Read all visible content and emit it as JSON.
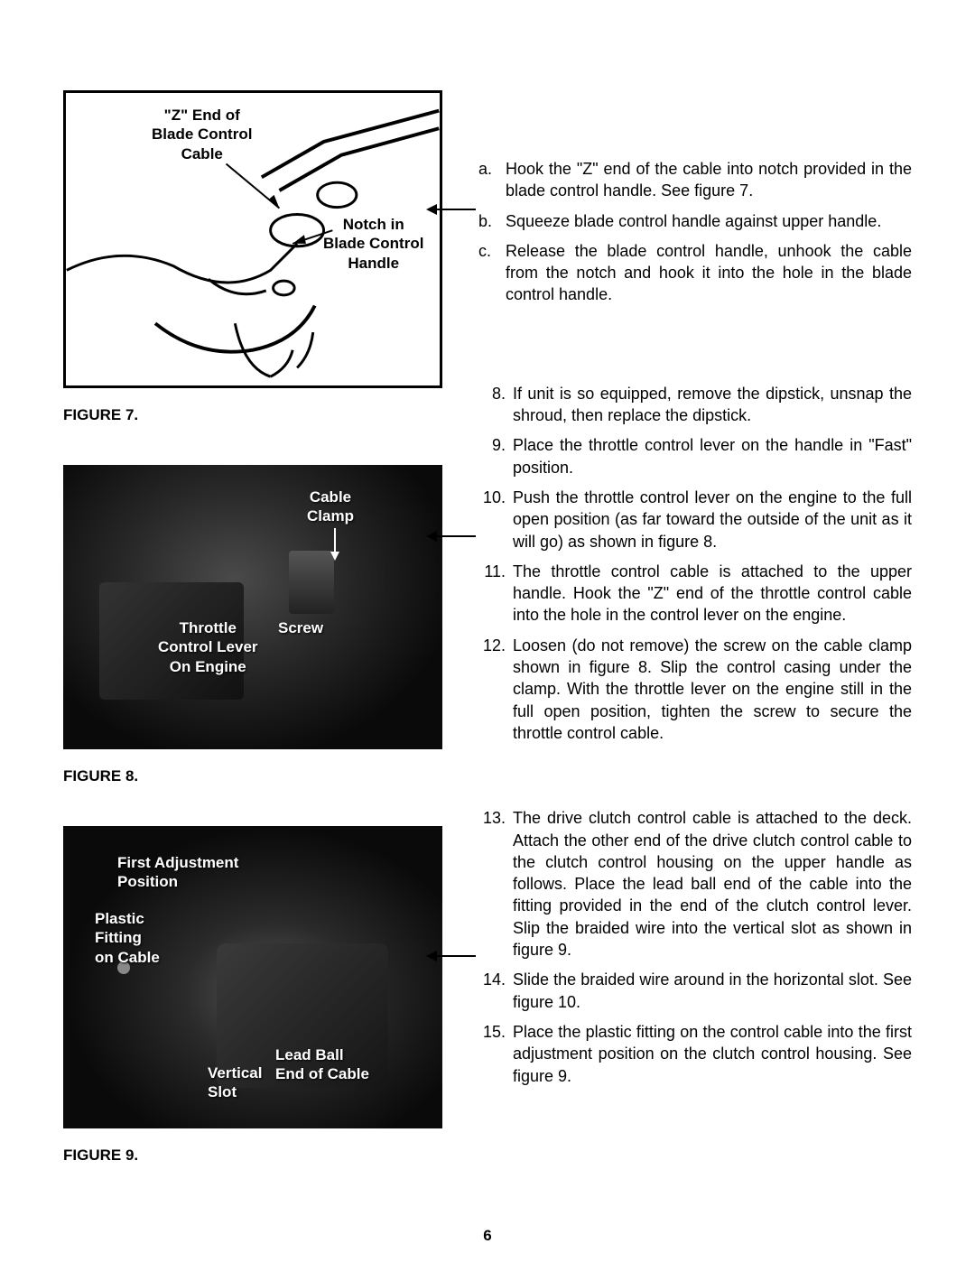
{
  "page_number": "6",
  "figure7": {
    "caption": "FIGURE 7.",
    "label_z_end": "\"Z\" End of\nBlade Control\nCable",
    "label_notch": "Notch in\nBlade Control\nHandle"
  },
  "figure8": {
    "caption": "FIGURE 8.",
    "label_cable_clamp": "Cable\nClamp",
    "label_screw": "Screw",
    "label_throttle": "Throttle\nControl Lever\nOn Engine"
  },
  "figure9": {
    "caption": "FIGURE 9.",
    "label_first_pos": "First Adjustment\nPosition",
    "label_plastic": "Plastic\nFitting\non Cable",
    "label_lead_ball": "Lead Ball\nEnd of Cable",
    "label_vertical": "Vertical\nSlot"
  },
  "steps_a": [
    {
      "marker": "a.",
      "text": "Hook the \"Z\" end of the cable into notch provided in the blade control handle. See figure 7."
    },
    {
      "marker": "b.",
      "text": "Squeeze blade control handle against upper handle."
    },
    {
      "marker": "c.",
      "text": "Release the blade control handle, unhook the cable from the notch and hook it into the hole in the blade control handle."
    }
  ],
  "steps_b": [
    {
      "marker": "8.",
      "text": "If unit is so equipped, remove the dipstick, unsnap the shroud, then replace the dipstick."
    },
    {
      "marker": "9.",
      "text": "Place the throttle control lever on the handle in \"Fast\" position."
    },
    {
      "marker": "10.",
      "text": "Push the throttle control lever on the engine to the full open position (as far toward the outside of the unit as it will go) as shown in figure 8."
    },
    {
      "marker": "11.",
      "text": "The throttle control cable is attached to the upper handle. Hook the \"Z\" end of the throttle control cable into the hole in the control lever on the engine."
    },
    {
      "marker": "12.",
      "text": "Loosen (do not remove) the screw on the cable clamp shown in figure 8. Slip the control casing under the clamp. With the throttle lever on the engine still in the full open position, tighten the screw to secure the throttle control cable."
    }
  ],
  "steps_c": [
    {
      "marker": "13.",
      "text": "The drive clutch control cable is attached to the deck. Attach the other end of the drive clutch control cable to the clutch control housing on the upper handle as follows. Place the lead ball end of the cable into the fitting provided in the end of the clutch control lever. Slip the braided wire into the vertical slot as shown in figure 9."
    },
    {
      "marker": "14.",
      "text": "Slide the braided wire around in the horizontal slot. See figure 10."
    },
    {
      "marker": "15.",
      "text": "Place the plastic fitting on the control cable into the first adjustment position on the clutch control housing. See figure 9."
    }
  ]
}
